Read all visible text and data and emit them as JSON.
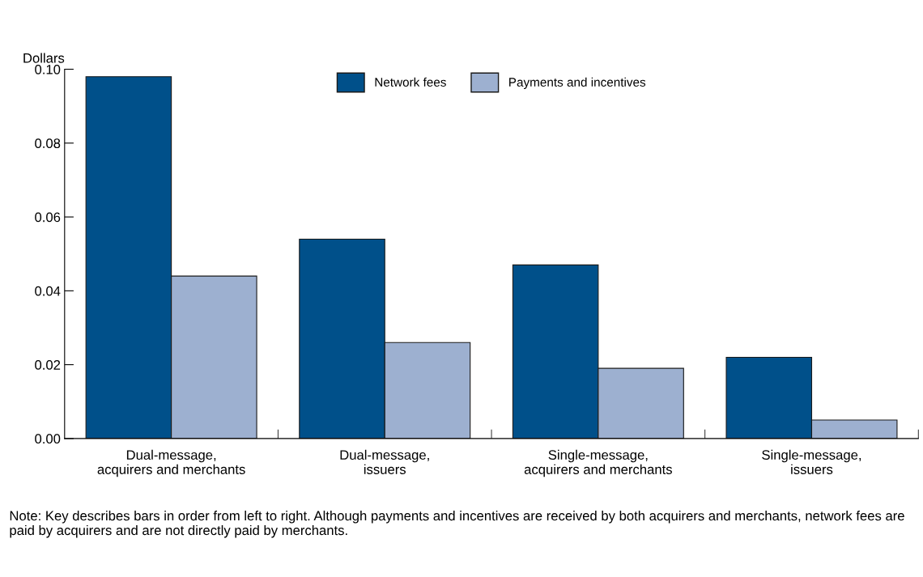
{
  "chart_data": {
    "type": "bar",
    "ylabel": "Dollars",
    "categories": [
      "Dual-message,\nacquirers and merchants",
      "Dual-message,\nissuers",
      "Single-message,\nacquirers and merchants",
      "Single-message,\nissuers"
    ],
    "series": [
      {
        "name": "Network fees",
        "color": "#00508a",
        "values": [
          0.098,
          0.054,
          0.047,
          0.022
        ]
      },
      {
        "name": "Payments and incentives",
        "color": "#9db0d0",
        "values": [
          0.044,
          0.026,
          0.019,
          0.005
        ]
      }
    ],
    "ylim": [
      0,
      0.1
    ],
    "yticks": [
      {
        "value": 0,
        "label": "0.00"
      },
      {
        "value": 0.02,
        "label": "0.02"
      },
      {
        "value": 0.04,
        "label": "0.04"
      },
      {
        "value": 0.06,
        "label": "0.06"
      },
      {
        "value": 0.08,
        "label": "0.08"
      },
      {
        "value": 0.1,
        "label": "0.10"
      }
    ],
    "grid": false,
    "legend": "top",
    "annotations": [
      "Note: Key describes bars in order from left to right. Although payments and incentives are received by both acquirers and merchants, network fees are paid by acquirers and are not directly paid by merchants."
    ]
  }
}
